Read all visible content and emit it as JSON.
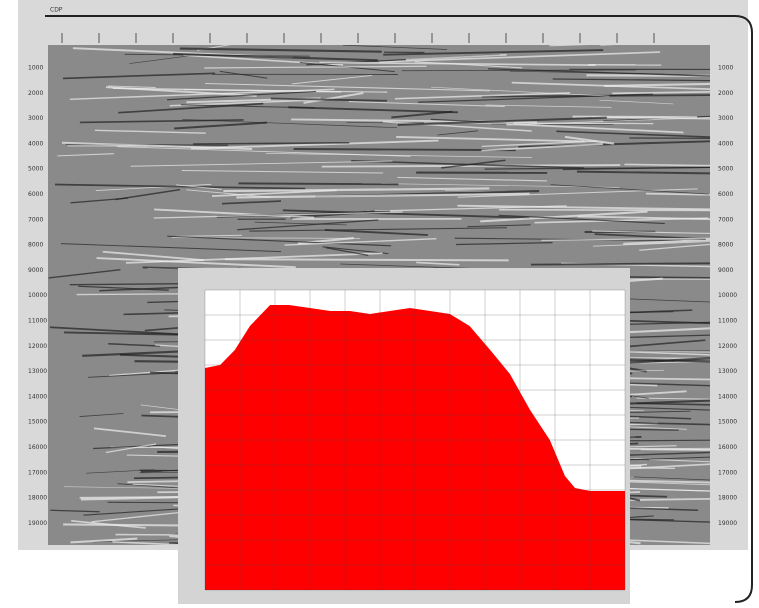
{
  "header": {
    "axis_label": "CDP"
  },
  "depth_labels": [
    "1000",
    "2000",
    "3000",
    "4000",
    "5000",
    "6000",
    "7000",
    "8000",
    "9000",
    "10000",
    "11000",
    "12000",
    "13000",
    "14000",
    "15000",
    "16000",
    "17000",
    "18000",
    "19000"
  ],
  "chart_data": {
    "type": "area",
    "color": "#ff0000",
    "x": [
      0,
      3.6,
      7.1,
      10.7,
      15.5,
      20,
      25,
      29.8,
      34.5,
      39.3,
      44,
      48.8,
      53.6,
      58.3,
      63,
      67.9,
      72.6,
      77.4,
      82.1,
      85.7,
      88.1,
      91.7,
      95.2,
      100
    ],
    "values": [
      74,
      75,
      80,
      88,
      95,
      95,
      94,
      93,
      93,
      92,
      93,
      94,
      93,
      92,
      88,
      80,
      72,
      60,
      50,
      38,
      34,
      33,
      33,
      33
    ],
    "xlim": [
      0,
      100
    ],
    "ylim": [
      0,
      100
    ]
  }
}
